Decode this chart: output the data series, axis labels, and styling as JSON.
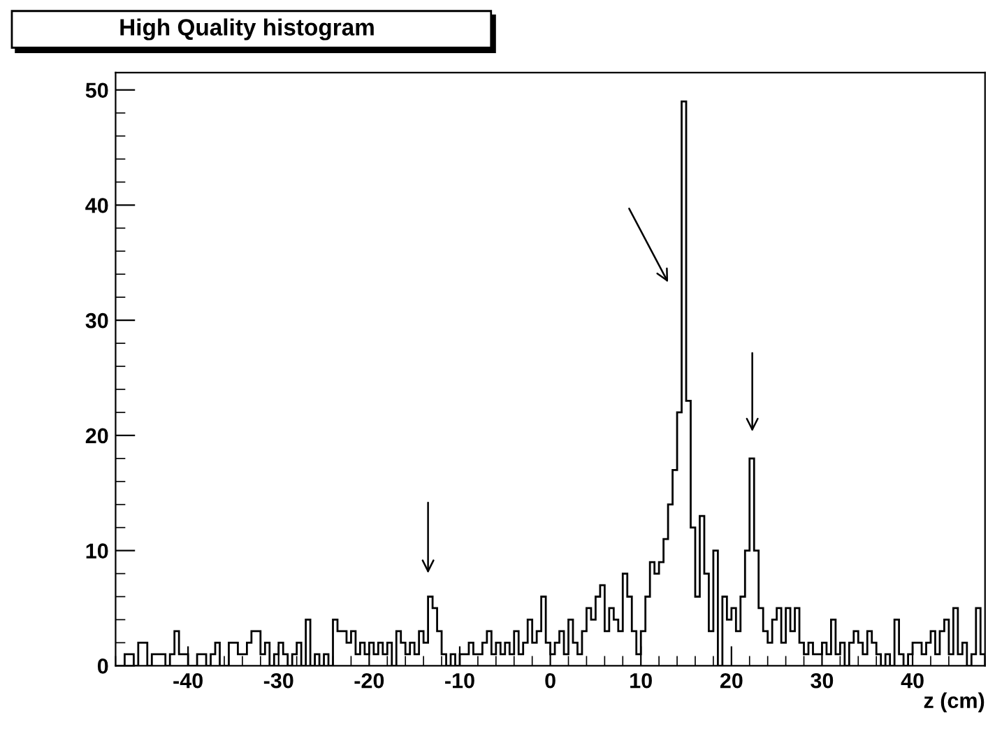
{
  "chart_data": {
    "type": "histogram",
    "title": "High Quality histogram",
    "xlabel": "z (cm)",
    "bins": [
      -48,
      -47.5,
      -47,
      -46.5,
      -46,
      -45.5,
      -45,
      -44.5,
      -44,
      -43.5,
      -43,
      -42.5,
      -42,
      -41.5,
      -41,
      -40.5,
      -40,
      -39.5,
      -39,
      -38.5,
      -38,
      -37.5,
      -37,
      -36.5,
      -36,
      -35.5,
      -35,
      -34.5,
      -34,
      -33.5,
      -33,
      -32.5,
      -32,
      -31.5,
      -31,
      -30.5,
      -30,
      -29.5,
      -29,
      -28.5,
      -28,
      -27.5,
      -27,
      -26.5,
      -26,
      -25.5,
      -25,
      -24.5,
      -24,
      -23.5,
      -23,
      -22.5,
      -22,
      -21.5,
      -21,
      -20.5,
      -20,
      -19.5,
      -19,
      -18.5,
      -18,
      -17.5,
      -17,
      -16.5,
      -16,
      -15.5,
      -15,
      -14.5,
      -14,
      -13.5,
      -13,
      -12.5,
      -12,
      -11.5,
      -11,
      -10.5,
      -10,
      -9.5,
      -9,
      -8.5,
      -8,
      -7.5,
      -7,
      -6.5,
      -6,
      -5.5,
      -5,
      -4.5,
      -4,
      -3.5,
      -3,
      -2.5,
      -2,
      -1.5,
      -1,
      -0.5,
      0,
      0.5,
      1,
      1.5,
      2,
      2.5,
      3,
      3.5,
      4,
      4.5,
      5,
      5.5,
      6,
      6.5,
      7,
      7.5,
      8,
      8.5,
      9,
      9.5,
      10,
      10.5,
      11,
      11.5,
      12,
      12.5,
      13,
      13.5,
      14,
      14.5,
      15,
      15.5,
      16,
      16.5,
      17,
      17.5,
      18,
      18.5,
      19,
      19.5,
      20,
      20.5,
      21,
      21.5,
      22,
      22.5,
      23,
      23.5,
      24,
      24.5,
      25,
      25.5,
      26,
      26.5,
      27,
      27.5,
      28,
      28.5,
      29,
      29.5,
      30,
      30.5,
      31,
      31.5,
      32,
      32.5,
      33,
      33.5,
      34,
      34.5,
      35,
      35.5,
      36,
      36.5,
      37,
      37.5,
      38,
      38.5,
      39,
      39.5,
      40,
      40.5,
      41,
      41.5,
      42,
      42.5,
      43,
      43.5,
      44,
      44.5,
      45,
      45.5,
      46,
      46.5,
      47,
      47.5,
      48
    ],
    "values": [
      0,
      0,
      1,
      1,
      0,
      2,
      2,
      0,
      1,
      1,
      1,
      0,
      1,
      3,
      1,
      1,
      0,
      0,
      1,
      1,
      0,
      1,
      2,
      0,
      0,
      2,
      2,
      1,
      1,
      2,
      3,
      3,
      1,
      2,
      0,
      1,
      2,
      1,
      0,
      1,
      2,
      0,
      4,
      0,
      1,
      0,
      1,
      0,
      4,
      3,
      3,
      2,
      3,
      1,
      2,
      1,
      2,
      1,
      2,
      1,
      2,
      0,
      3,
      2,
      1,
      2,
      1,
      3,
      2,
      6,
      5,
      3,
      1,
      0,
      1,
      0,
      1,
      1,
      2,
      1,
      1,
      2,
      3,
      1,
      2,
      1,
      2,
      1,
      3,
      1,
      2,
      4,
      2,
      3,
      6,
      2,
      1,
      2,
      3,
      1,
      4,
      2,
      1,
      3,
      5,
      4,
      6,
      7,
      3,
      5,
      4,
      3,
      8,
      6,
      3,
      1,
      3,
      6,
      9,
      8,
      9,
      11,
      14,
      17,
      22,
      49,
      23,
      12,
      6,
      13,
      8,
      3,
      10,
      0,
      6,
      4,
      5,
      3,
      6,
      10,
      18,
      10,
      5,
      3,
      2,
      4,
      5,
      2,
      5,
      3,
      5,
      2,
      1,
      2,
      1,
      1,
      2,
      1,
      4,
      1,
      2,
      0,
      2,
      3,
      2,
      1,
      3,
      2,
      1,
      0,
      1,
      0,
      4,
      1,
      0,
      1,
      2,
      2,
      1,
      2,
      3,
      1,
      3,
      4,
      1,
      5,
      1,
      2,
      0,
      1,
      5,
      1
    ],
    "color": "#000000",
    "xlim": [
      -48,
      48
    ],
    "ylim": [
      0,
      51.5
    ],
    "xticks": [
      -40,
      -30,
      -20,
      -10,
      0,
      10,
      20,
      30,
      40
    ],
    "yticks": [
      0,
      10,
      20,
      30,
      40,
      50
    ],
    "grid": false
  }
}
